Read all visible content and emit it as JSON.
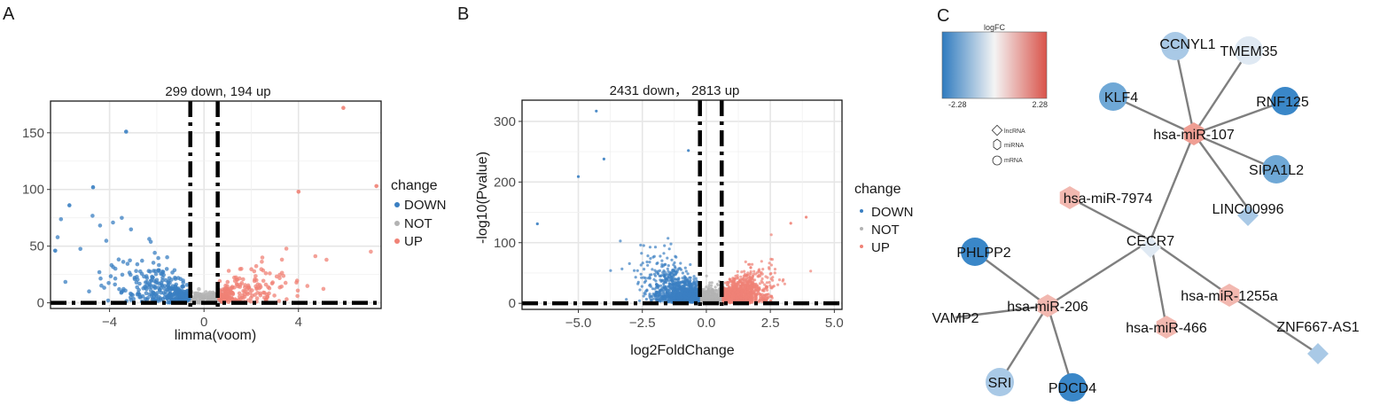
{
  "panels": {
    "A": "A",
    "B": "B",
    "C": "C"
  },
  "colors": {
    "down": "#3a7fc2",
    "not": "#b3b3b3",
    "up": "#f08276",
    "grid": "#e6e6e6",
    "edge": "#7f7f7f",
    "mirna_node": "#f2b8b0",
    "dark_blue_node": "#3a87c8",
    "mid_blue_node": "#6fa8d6",
    "light_blue_node": "#a9c9e6",
    "pale_node": "#dfe9f3"
  },
  "chart_data": [
    {
      "type": "scatter",
      "panel": "A",
      "title": "299 down, 194 up",
      "xlabel": "limma(voom)",
      "ylabel": "",
      "xlim": [
        -6.5,
        7.5
      ],
      "ylim": [
        -5,
        178
      ],
      "xticks": [
        -4,
        0,
        4
      ],
      "yticks": [
        0,
        50,
        100,
        150
      ],
      "legend": {
        "title": "change",
        "position": "right",
        "entries": [
          "DOWN",
          "NOT",
          "UP"
        ]
      },
      "counts": {
        "down": 299,
        "up": 194
      },
      "thresholds": {
        "vlines": [
          -0.58,
          0.58
        ],
        "hline": 0
      },
      "grid": true,
      "highlighted_points": [
        {
          "x": -3.3,
          "y": 151,
          "group": "DOWN"
        },
        {
          "x": -5.7,
          "y": 86,
          "group": "DOWN"
        },
        {
          "x": -4.7,
          "y": 102,
          "group": "DOWN"
        },
        {
          "x": -6.3,
          "y": 46,
          "group": "DOWN"
        },
        {
          "x": 5.9,
          "y": 172,
          "group": "UP"
        },
        {
          "x": 7.3,
          "y": 103,
          "group": "UP"
        },
        {
          "x": 4.0,
          "y": 98,
          "group": "UP"
        }
      ]
    },
    {
      "type": "scatter",
      "panel": "B",
      "title": "2431 down， 2813 up",
      "xlabel": "log2FoldChange",
      "ylabel": "-log10(Pvalue)",
      "xlim": [
        -7.2,
        5.3
      ],
      "ylim": [
        -10,
        335
      ],
      "xticks": [
        -5.0,
        -2.5,
        0.0,
        2.5,
        5.0
      ],
      "xtick_labels": [
        "−5.0",
        "−2.5",
        "0.0",
        "2.5",
        "5.0"
      ],
      "yticks": [
        0,
        100,
        200,
        300
      ],
      "legend": {
        "title": "change",
        "position": "right",
        "entries": [
          "DOWN",
          "NOT",
          "UP"
        ]
      },
      "counts": {
        "down": 2431,
        "up": 2813
      },
      "thresholds": {
        "vlines": [
          -0.25,
          0.6
        ],
        "hline": 0
      },
      "grid": true,
      "highlighted_points": [
        {
          "x": -4.3,
          "y": 317,
          "group": "DOWN"
        },
        {
          "x": -4.0,
          "y": 238,
          "group": "DOWN"
        },
        {
          "x": -5.0,
          "y": 209,
          "group": "DOWN"
        },
        {
          "x": -0.7,
          "y": 252,
          "group": "DOWN"
        },
        {
          "x": -6.6,
          "y": 131,
          "group": "DOWN"
        },
        {
          "x": 3.9,
          "y": 142,
          "group": "UP"
        },
        {
          "x": 3.3,
          "y": 132,
          "group": "UP"
        }
      ]
    },
    {
      "type": "network",
      "panel": "C",
      "colorbar": {
        "title": "logFC",
        "min_label": "-2.28",
        "max_label": "2.28"
      },
      "shape_legend": [
        "lncRNA",
        "miRNA",
        "mRNA"
      ],
      "nodes": [
        {
          "id": "CECR7",
          "kind": "lncRNA"
        },
        {
          "id": "LINC00996",
          "kind": "lncRNA"
        },
        {
          "id": "ZNF667-AS1",
          "kind": "lncRNA"
        },
        {
          "id": "hsa-miR-107",
          "kind": "miRNA"
        },
        {
          "id": "hsa-miR-7974",
          "kind": "miRNA"
        },
        {
          "id": "hsa-miR-206",
          "kind": "miRNA"
        },
        {
          "id": "hsa-miR-1255a",
          "kind": "miRNA"
        },
        {
          "id": "hsa-miR-466",
          "kind": "miRNA"
        },
        {
          "id": "CCNYL1",
          "kind": "mRNA"
        },
        {
          "id": "TMEM35",
          "kind": "mRNA"
        },
        {
          "id": "KLF4",
          "kind": "mRNA"
        },
        {
          "id": "RNF125",
          "kind": "mRNA"
        },
        {
          "id": "SIPA1L2",
          "kind": "mRNA"
        },
        {
          "id": "PHLPP2",
          "kind": "mRNA"
        },
        {
          "id": "VAMP2",
          "kind": "mRNA"
        },
        {
          "id": "SRI",
          "kind": "mRNA"
        },
        {
          "id": "PDCD4",
          "kind": "mRNA"
        }
      ],
      "edges": [
        [
          "hsa-miR-107",
          "CCNYL1"
        ],
        [
          "hsa-miR-107",
          "TMEM35"
        ],
        [
          "hsa-miR-107",
          "KLF4"
        ],
        [
          "hsa-miR-107",
          "RNF125"
        ],
        [
          "hsa-miR-107",
          "SIPA1L2"
        ],
        [
          "hsa-miR-107",
          "LINC00996"
        ],
        [
          "hsa-miR-107",
          "CECR7"
        ],
        [
          "hsa-miR-7974",
          "CECR7"
        ],
        [
          "CECR7",
          "hsa-miR-206"
        ],
        [
          "CECR7",
          "hsa-miR-1255a"
        ],
        [
          "CECR7",
          "hsa-miR-466"
        ],
        [
          "hsa-miR-1255a",
          "ZNF667-AS1"
        ],
        [
          "hsa-miR-206",
          "PHLPP2"
        ],
        [
          "hsa-miR-206",
          "VAMP2"
        ],
        [
          "hsa-miR-206",
          "SRI"
        ],
        [
          "hsa-miR-206",
          "PDCD4"
        ]
      ]
    }
  ]
}
